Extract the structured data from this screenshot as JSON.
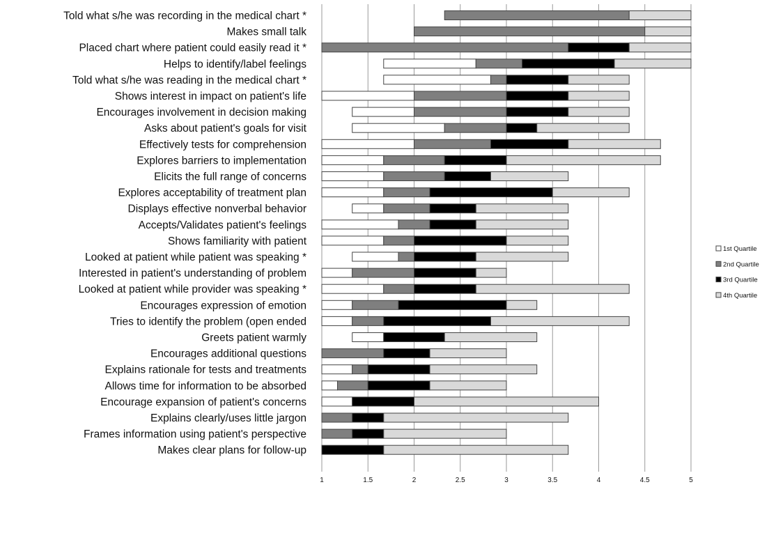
{
  "chart_data": {
    "type": "bar",
    "orientation": "horizontal",
    "stacked": true,
    "categories": [
      "Told what s/he was recording in the medical chart *",
      "Makes small talk",
      "Placed chart where patient could easily read it *",
      "Helps to identify/label feelings",
      "Told what s/he was reading in the medical chart *",
      "Shows interest in impact on patient's life",
      "Encourages involvement in decision making",
      "Asks about patient's goals for visit",
      "Effectively tests for comprehension",
      "Explores barriers to implementation",
      "Elicits the full range of concerns",
      "Explores acceptability of treatment plan",
      "Displays effective nonverbal behavior",
      "Accepts/Validates patient's feelings",
      "Shows familiarity with patient",
      "Looked at patient while patient was speaking *",
      "Interested in patient's understanding of problem",
      "Looked at patient while provider was speaking *",
      "Encourages expression of emotion",
      "Tries to identify the problem (open ended",
      "Greets patient warmly",
      "Encourages additional questions",
      "Explains rationale for tests and treatments",
      "Allows time for information to be absorbed",
      "Encourage expansion of patient's concerns",
      "Explains clearly/uses little jargon",
      "Frames information using patient's perspective",
      "Makes clear plans for follow-up"
    ],
    "quartile_bounds": [
      [
        2.33,
        2.33,
        4.33,
        4.33,
        5.0
      ],
      [
        2.0,
        2.0,
        4.5,
        4.5,
        5.0
      ],
      [
        1.0,
        1.0,
        3.67,
        4.33,
        5.0
      ],
      [
        1.67,
        2.67,
        3.17,
        4.17,
        5.0
      ],
      [
        1.67,
        2.83,
        3.0,
        3.67,
        4.33
      ],
      [
        1.0,
        2.0,
        3.0,
        3.67,
        4.33
      ],
      [
        1.33,
        2.0,
        3.0,
        3.67,
        4.33
      ],
      [
        1.33,
        2.33,
        3.0,
        3.33,
        4.33
      ],
      [
        1.0,
        2.0,
        2.83,
        3.67,
        4.67
      ],
      [
        1.0,
        1.67,
        2.33,
        3.0,
        4.67
      ],
      [
        1.0,
        1.67,
        2.33,
        2.83,
        3.67
      ],
      [
        1.0,
        1.67,
        2.17,
        3.5,
        4.33
      ],
      [
        1.33,
        1.67,
        2.17,
        2.67,
        3.67
      ],
      [
        1.0,
        1.83,
        2.17,
        2.67,
        3.67
      ],
      [
        1.0,
        1.67,
        2.0,
        3.0,
        3.67
      ],
      [
        1.33,
        1.83,
        2.0,
        2.67,
        3.67
      ],
      [
        1.0,
        1.33,
        2.0,
        2.67,
        3.0
      ],
      [
        1.0,
        1.67,
        2.0,
        2.67,
        4.33
      ],
      [
        1.0,
        1.33,
        1.83,
        3.0,
        3.33
      ],
      [
        1.0,
        1.33,
        1.67,
        2.83,
        4.33
      ],
      [
        1.33,
        1.67,
        1.67,
        2.33,
        3.33
      ],
      [
        1.0,
        1.0,
        1.67,
        2.17,
        3.0
      ],
      [
        1.0,
        1.33,
        1.5,
        2.17,
        3.33
      ],
      [
        1.0,
        1.17,
        1.5,
        2.17,
        3.0
      ],
      [
        1.0,
        1.33,
        1.33,
        2.0,
        4.0
      ],
      [
        1.0,
        1.0,
        1.33,
        1.67,
        3.67
      ],
      [
        1.0,
        1.0,
        1.33,
        1.67,
        3.0
      ],
      [
        1.0,
        1.0,
        1.0,
        1.67,
        3.67
      ]
    ],
    "series": [
      {
        "name": "1st Quartile",
        "color": "#ffffff"
      },
      {
        "name": "2nd Quartile",
        "color": "#7f7f7f"
      },
      {
        "name": "3rd Quartile",
        "color": "#000000"
      },
      {
        "name": "4th Quartile",
        "color": "#d9d9d9"
      }
    ],
    "xlim": [
      1,
      5
    ],
    "xticks": [
      1,
      1.5,
      2,
      2.5,
      3,
      3.5,
      4,
      4.5,
      5
    ],
    "xtick_labels": [
      "1",
      "1.5",
      "2",
      "2.5",
      "3",
      "3.5",
      "4",
      "4.5",
      "5"
    ],
    "grid": "vertical",
    "legend_position": "right",
    "title": "",
    "xlabel": "",
    "ylabel": ""
  }
}
